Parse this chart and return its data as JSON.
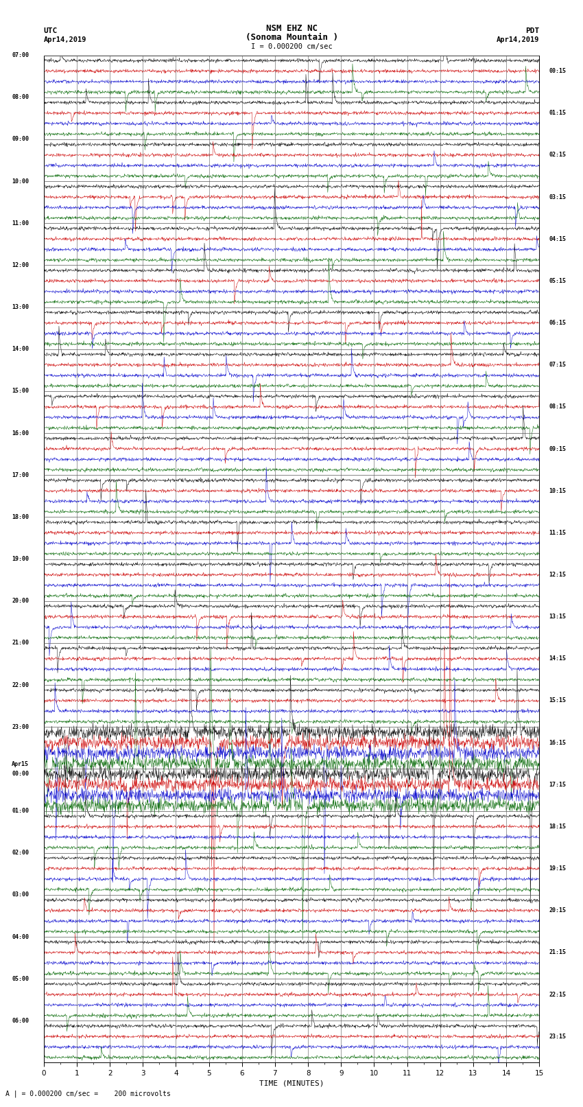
{
  "title_line1": "NSM EHZ NC",
  "title_line2": "(Sonoma Mountain )",
  "scale_label": "I = 0.000200 cm/sec",
  "left_label": "UTC",
  "right_label": "PDT",
  "date_left": "Apr14,2019",
  "date_right": "Apr14,2019",
  "bottom_label": "TIME (MINUTES)",
  "bottom_note": "A | = 0.000200 cm/sec =    200 microvolts",
  "trace_colors": [
    "#000000",
    "#cc0000",
    "#0000cc",
    "#006600"
  ],
  "bg_color": "#ffffff",
  "xmin": 0,
  "xmax": 15,
  "xticks": [
    0,
    1,
    2,
    3,
    4,
    5,
    6,
    7,
    8,
    9,
    10,
    11,
    12,
    13,
    14,
    15
  ],
  "noise_amplitude": 0.08,
  "spike_probability": 0.0015,
  "spike_amplitude": 1.5,
  "fig_width": 8.5,
  "fig_height": 16.13,
  "num_hour_groups": 24,
  "traces_per_group": 4,
  "left_label_times": [
    "07:00",
    "08:00",
    "09:00",
    "10:00",
    "11:00",
    "12:00",
    "13:00",
    "14:00",
    "15:00",
    "16:00",
    "17:00",
    "18:00",
    "19:00",
    "20:00",
    "21:00",
    "22:00",
    "23:00",
    "Apr15\n00:00",
    "01:00",
    "02:00",
    "03:00",
    "04:00",
    "05:00",
    "06:00"
  ],
  "right_label_times": [
    "00:15",
    "01:15",
    "02:15",
    "03:15",
    "04:15",
    "05:15",
    "06:15",
    "07:15",
    "08:15",
    "09:15",
    "10:15",
    "11:15",
    "12:15",
    "13:15",
    "14:15",
    "15:15",
    "16:15",
    "17:15",
    "18:15",
    "19:15",
    "20:15",
    "21:15",
    "22:15",
    "23:15"
  ],
  "noisy_groups": [
    16,
    17,
    30,
    31
  ],
  "noisy_factor": 4.0
}
